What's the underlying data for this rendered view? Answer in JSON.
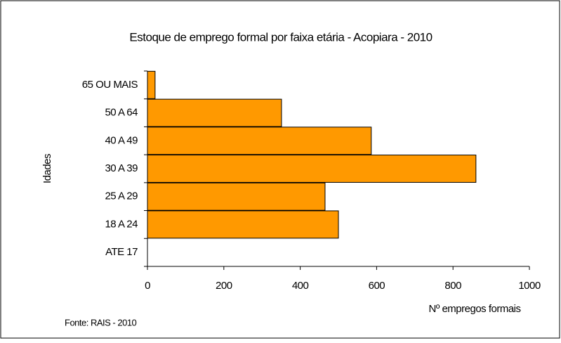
{
  "chart_data": {
    "type": "bar",
    "orientation": "horizontal",
    "title": "Estoque de emprego formal por faixa etária - Acopiara - 2010",
    "x_label": "Nº empregos formais",
    "y_label": "Idades",
    "source": "Fonte: RAIS - 2010",
    "categories": [
      "ATE 17",
      "18 A 24",
      "25 A 29",
      "30 A 39",
      "40 A 49",
      "50 A 64",
      "65 OU MAIS"
    ],
    "values": [
      0,
      500,
      465,
      860,
      586,
      351,
      20
    ],
    "color": "#ff9900",
    "xlim": [
      0,
      1000
    ],
    "xticks": [
      0,
      200,
      400,
      600,
      800,
      1000
    ],
    "grid": false
  }
}
